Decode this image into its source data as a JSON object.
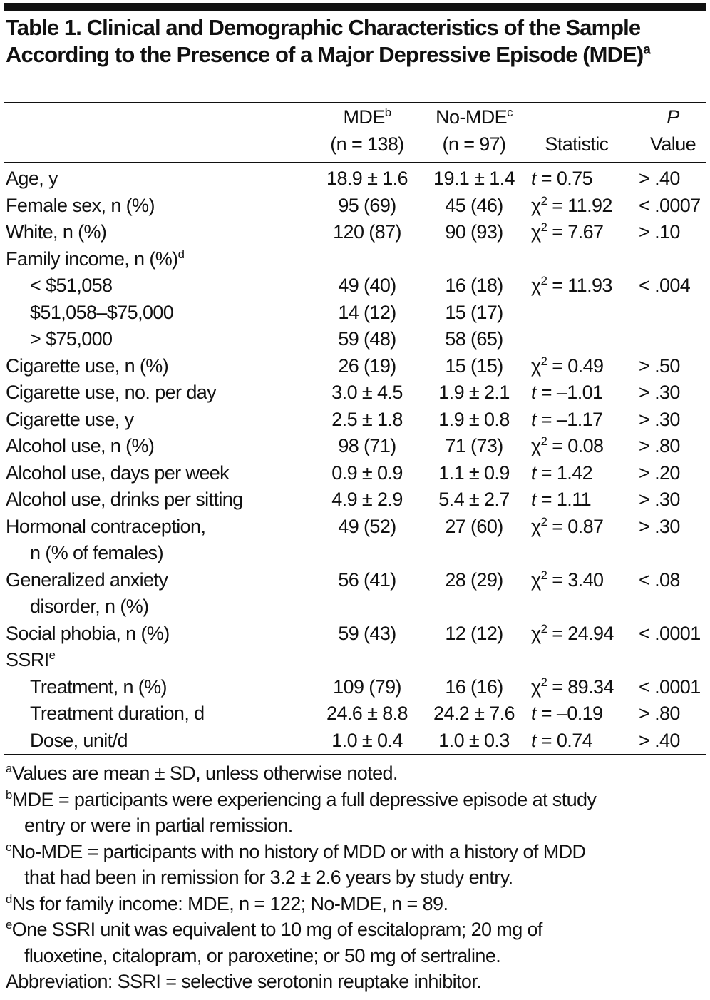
{
  "title": {
    "text": "Table 1. Clinical and Demographic Characteristics of the Sample According to the Presence of a Major Depressive Episode (MDE)",
    "sup": "a"
  },
  "header": {
    "mde": {
      "label": "MDE",
      "sup": "b",
      "n": "(n = 138)"
    },
    "nomde": {
      "label": "No-MDE",
      "sup": "c",
      "n": "(n = 97)"
    },
    "statistic": "Statistic",
    "p_line1": "P",
    "p_line2": "Value"
  },
  "rows": [
    {
      "label": "Age, y",
      "mde": "18.9 ± 1.6",
      "nomde": "19.1 ± 1.4",
      "stat_sym": "t",
      "stat_sup": "",
      "stat_val": " = 0.75",
      "p": "> .40"
    },
    {
      "label": "Female sex, n (%)",
      "mde": "95 (69)",
      "nomde": "45 (46)",
      "stat_sym": "χ",
      "stat_sup": "2",
      "stat_val": " = 11.92",
      "p": "< .0007"
    },
    {
      "label": "White, n (%)",
      "mde": "120 (87)",
      "nomde": "90 (93)",
      "stat_sym": "χ",
      "stat_sup": "2",
      "stat_val": " = 7.67",
      "p": "> .10"
    },
    {
      "label": "Family income, n (%)",
      "label_sup": "d"
    },
    {
      "label": "< $51,058",
      "indent": true,
      "mde": "49 (40)",
      "nomde": "16 (18)",
      "stat_sym": "χ",
      "stat_sup": "2",
      "stat_val": " = 11.93",
      "p": "< .004"
    },
    {
      "label": "$51,058–$75,000",
      "indent": true,
      "mde": "14 (12)",
      "nomde": "15 (17)"
    },
    {
      "label": "> $75,000",
      "indent": true,
      "mde": "59 (48)",
      "nomde": "58 (65)"
    },
    {
      "label": "Cigarette use, n (%)",
      "mde": "26 (19)",
      "nomde": "15 (15)",
      "stat_sym": "χ",
      "stat_sup": "2",
      "stat_val": " = 0.49",
      "p": "> .50"
    },
    {
      "label": "Cigarette use, no. per day",
      "mde": "3.0 ± 4.5",
      "nomde": "1.9 ± 2.1",
      "stat_sym": "t",
      "stat_sup": "",
      "stat_val": " = –1.01",
      "p": "> .30"
    },
    {
      "label": "Cigarette use, y",
      "mde": "2.5 ± 1.8",
      "nomde": "1.9 ± 0.8",
      "stat_sym": "t",
      "stat_sup": "",
      "stat_val": " = –1.17",
      "p": "> .30"
    },
    {
      "label": "Alcohol use, n (%)",
      "mde": "98 (71)",
      "nomde": "71 (73)",
      "stat_sym": "χ",
      "stat_sup": "2",
      "stat_val": " = 0.08",
      "p": "> .80"
    },
    {
      "label": "Alcohol use, days per week",
      "mde": "0.9 ± 0.9",
      "nomde": "1.1 ± 0.9",
      "stat_sym": "t",
      "stat_sup": "",
      "stat_val": " = 1.42",
      "p": "> .20"
    },
    {
      "label": "Alcohol use, drinks per sitting",
      "mde": "4.9 ± 2.9",
      "nomde": "5.4 ± 2.7",
      "stat_sym": "t",
      "stat_sup": "",
      "stat_val": " = 1.11",
      "p": "> .30"
    },
    {
      "label": "Hormonal contraception,",
      "label2": "n (% of females)",
      "mde": "49 (52)",
      "nomde": "27 (60)",
      "stat_sym": "χ",
      "stat_sup": "2",
      "stat_val": " = 0.87",
      "p": "> .30"
    },
    {
      "label": "Generalized anxiety",
      "label2": "disorder, n (%)",
      "mde": "56 (41)",
      "nomde": "28 (29)",
      "stat_sym": "χ",
      "stat_sup": "2",
      "stat_val": " = 3.40",
      "p": "< .08"
    },
    {
      "label": "Social phobia, n (%)",
      "mde": "59 (43)",
      "nomde": "12 (12)",
      "stat_sym": "χ",
      "stat_sup": "2",
      "stat_val": " = 24.94",
      "p": "< .0001"
    },
    {
      "label": "SSRI",
      "label_sup": "e"
    },
    {
      "label": "Treatment, n (%)",
      "indent": true,
      "mde": "109 (79)",
      "nomde": "16 (16)",
      "stat_sym": "χ",
      "stat_sup": "2",
      "stat_val": " = 89.34",
      "p": "< .0001"
    },
    {
      "label": "Treatment duration, d",
      "indent": true,
      "mde": "24.6 ± 8.8",
      "nomde": "24.2 ± 7.6",
      "stat_sym": "t",
      "stat_sup": "",
      "stat_val": " = –0.19",
      "p": "> .80"
    },
    {
      "label": "Dose, unit/d",
      "indent": true,
      "mde": "1.0 ± 0.4",
      "nomde": "1.0 ± 0.3",
      "stat_sym": "t",
      "stat_sup": "",
      "stat_val": " = 0.74",
      "p": "> .40"
    }
  ],
  "footnotes": [
    {
      "sup": "a",
      "lines": [
        "Values are mean ± SD, unless otherwise noted."
      ]
    },
    {
      "sup": "b",
      "lines": [
        "MDE = participants were experiencing a full depressive episode at study",
        "entry or were in partial remission."
      ]
    },
    {
      "sup": "c",
      "lines": [
        "No-MDE = participants with no history of MDD or with a history of MDD",
        "that had been in remission for 3.2 ± 2.6 years by study entry."
      ]
    },
    {
      "sup": "d",
      "lines": [
        "Ns for family income: MDE, n = 122; No-MDE, n = 89."
      ]
    },
    {
      "sup": "e",
      "lines": [
        "One SSRI unit was equivalent to 10 mg of escitalopram; 20 mg of",
        "fluoxetine, citalopram, or paroxetine; or 50 mg of sertraline."
      ]
    },
    {
      "sup": "",
      "lines": [
        "Abbreviation: SSRI = selective serotonin reuptake inhibitor."
      ]
    }
  ]
}
